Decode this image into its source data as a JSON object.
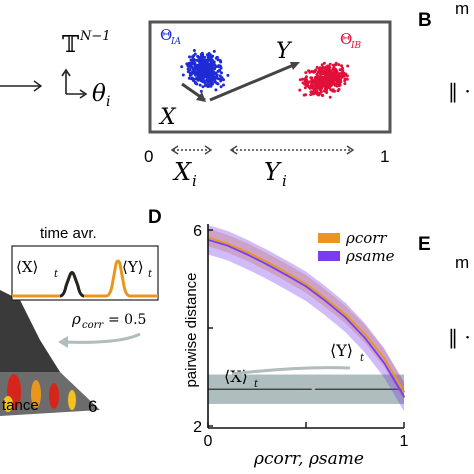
{
  "panel_top": {
    "torus_label": "𝕋",
    "torus_sup": "N−1",
    "theta_label": "θ",
    "theta_sub": "i",
    "cluster_a_label": "Θ",
    "cluster_a_sub": "IA",
    "cluster_b_label": "Θ",
    "cluster_b_sub": "IB",
    "vector_x_label": "X",
    "vector_y_label": "Y",
    "axis_zero": "0",
    "axis_one": "1",
    "xi_label": "X",
    "xi_sub": "i",
    "yi_label": "Y",
    "yi_sub": "i",
    "cluster_a_color": "#1f2bd6",
    "cluster_b_color": "#e0103a"
  },
  "panel_B": {
    "letter": "B",
    "cut_text_top": "m",
    "cut_text_norm": "‖ ·"
  },
  "panel_D": {
    "letter": "D"
  },
  "panel_E": {
    "letter": "E",
    "cut_text_top": "m",
    "cut_text_norm": "‖ ·"
  },
  "inset": {
    "title": "time avr.",
    "x_avg": "⟨X⟩",
    "x_sub": "t",
    "y_avg": "⟨Y⟩",
    "y_sub": "t",
    "rho": "ρ",
    "rho_sub": "corr",
    "rho_value": "= 0.5",
    "bottom_label": "tance",
    "bottom_num": "6"
  },
  "chart_data": {
    "type": "line",
    "ylabel": "pairwise distance",
    "xlabel": "ρcorr, ρsame",
    "xlim": [
      0,
      1
    ],
    "ylim": [
      2,
      6
    ],
    "xticks": [
      "0",
      "0.5",
      "1"
    ],
    "yticks": [
      "2",
      "4",
      "6"
    ],
    "legend": [
      {
        "name": "ρcorr",
        "color": "#e8961e"
      },
      {
        "name": "ρsame",
        "color": "#7a3cf0"
      }
    ],
    "annotations": {
      "y_label": "⟨Y⟩",
      "y_sub": "t",
      "x_label": "⟨X⟩",
      "x_sub": "t"
    },
    "series": [
      {
        "name": "ρcorr",
        "color": "#e8961e",
        "x": [
          0,
          0.1,
          0.2,
          0.3,
          0.4,
          0.5,
          0.6,
          0.7,
          0.8,
          0.9,
          1.0
        ],
        "y": [
          5.85,
          5.72,
          5.55,
          5.35,
          5.13,
          4.9,
          4.6,
          4.28,
          3.88,
          3.38,
          2.7
        ],
        "band": 0.18
      },
      {
        "name": "ρsame",
        "color": "#7a3cf0",
        "x": [
          0,
          0.1,
          0.2,
          0.3,
          0.4,
          0.5,
          0.6,
          0.7,
          0.8,
          0.9,
          1.0
        ],
        "y": [
          5.8,
          5.68,
          5.5,
          5.3,
          5.08,
          4.85,
          4.55,
          4.22,
          3.8,
          3.28,
          2.6
        ],
        "band": 0.3
      }
    ],
    "baseline": {
      "y": 2.75,
      "band": 0.3,
      "color": "#9aacae"
    }
  }
}
